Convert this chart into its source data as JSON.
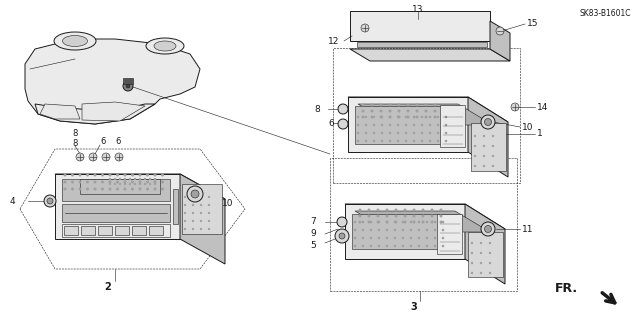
{
  "bg_color": "#ffffff",
  "line_color": "#1a1a1a",
  "diagram_code": "SK83-B1601C",
  "direction_label": "FR",
  "radio_left": {
    "label": "2",
    "knob_label": "10",
    "side_knob_label": "4",
    "bottom_labels": [
      "8",
      "6",
      "8",
      "6"
    ],
    "hex_outline": true
  },
  "radio_top_right": {
    "label": "3",
    "knob_label": "11",
    "side_labels": [
      "7",
      "9",
      "5"
    ]
  },
  "radio_bottom_right": {
    "label": "10",
    "side_labels": [
      "8",
      "6"
    ],
    "right_label": "1",
    "bolt_label": "14"
  },
  "pocket": {
    "left_label": "12",
    "bottom_label": "13",
    "bolt_label": "15"
  }
}
